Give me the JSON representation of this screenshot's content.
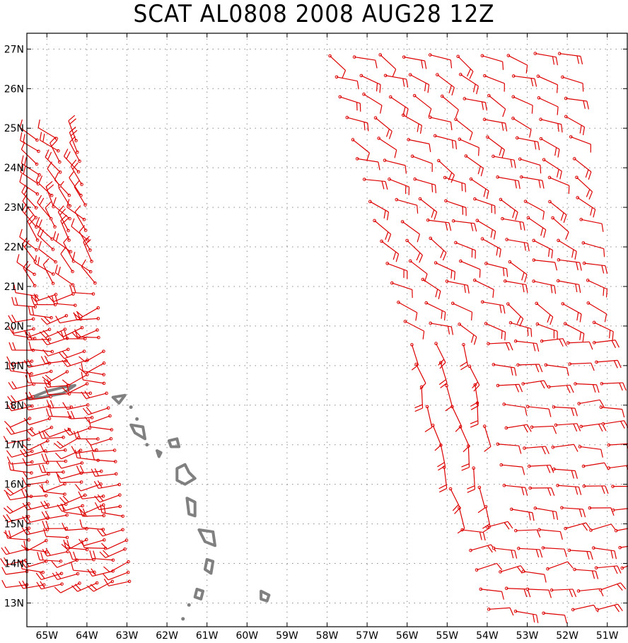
{
  "title": "SCAT AL0808 2008 AUG28 12Z",
  "map": {
    "lon_range": [
      -65.5,
      -50.5
    ],
    "lat_range": [
      12.4,
      27.4
    ],
    "lon_ticks": [
      {
        "value": -65,
        "label": "65W"
      },
      {
        "value": -64,
        "label": "64W"
      },
      {
        "value": -63,
        "label": "63W"
      },
      {
        "value": -62,
        "label": "62W"
      },
      {
        "value": -61,
        "label": "61W"
      },
      {
        "value": -60,
        "label": "60W"
      },
      {
        "value": -59,
        "label": "59W"
      },
      {
        "value": -58,
        "label": "58W"
      },
      {
        "value": -57,
        "label": "57W"
      },
      {
        "value": -56,
        "label": "56W"
      },
      {
        "value": -55,
        "label": "55W"
      },
      {
        "value": -54,
        "label": "54W"
      },
      {
        "value": -53,
        "label": "53W"
      },
      {
        "value": -52,
        "label": "52W"
      },
      {
        "value": -51,
        "label": "51W"
      }
    ],
    "lat_ticks": [
      {
        "value": 13,
        "label": "13N"
      },
      {
        "value": 14,
        "label": "14N"
      },
      {
        "value": 15,
        "label": "15N"
      },
      {
        "value": 16,
        "label": "16N"
      },
      {
        "value": 17,
        "label": "17N"
      },
      {
        "value": 18,
        "label": "18N"
      },
      {
        "value": 19,
        "label": "19N"
      },
      {
        "value": 20,
        "label": "20N"
      },
      {
        "value": 21,
        "label": "21N"
      },
      {
        "value": 22,
        "label": "22N"
      },
      {
        "value": 23,
        "label": "23N"
      },
      {
        "value": 24,
        "label": "24N"
      },
      {
        "value": 25,
        "label": "25N"
      },
      {
        "value": 26,
        "label": "26N"
      },
      {
        "value": 27,
        "label": "27N"
      }
    ],
    "colors": {
      "wind_barb": "#dd0000",
      "coastline": "#808080",
      "grid": "#8a8a8a",
      "frame": "#000000"
    },
    "islands": [
      {
        "name": "puerto-rico",
        "lon": -64.3,
        "lat": 18.3
      },
      {
        "name": "virgin-islands",
        "lon": -63.2,
        "lat": 18.1
      },
      {
        "name": "st-kitts",
        "lon": -62.7,
        "lat": 17.3
      },
      {
        "name": "antigua",
        "lon": -61.8,
        "lat": 17.1
      },
      {
        "name": "montserrat",
        "lon": -62.2,
        "lat": 16.8
      },
      {
        "name": "guadeloupe",
        "lon": -61.5,
        "lat": 16.2
      },
      {
        "name": "dominica",
        "lon": -61.4,
        "lat": 15.4
      },
      {
        "name": "martinique",
        "lon": -61.0,
        "lat": 14.6
      },
      {
        "name": "st-lucia",
        "lon": -60.95,
        "lat": 13.9
      },
      {
        "name": "st-vincent",
        "lon": -61.2,
        "lat": 13.2
      },
      {
        "name": "barbados",
        "lon": -59.55,
        "lat": 13.15
      }
    ],
    "swaths": [
      {
        "name": "west-swath",
        "lon_w_top": -65.2,
        "lon_e_top": -64.3,
        "lat_top": 24.8,
        "lon_w_bot": -65.5,
        "lon_e_bot": -62.9,
        "lat_bot": 13.5
      },
      {
        "name": "east-swath",
        "lon_w_top": -58.0,
        "lon_e_top": -52.2,
        "lat_top": 27.0,
        "lon_w_bot": -54.0,
        "lon_e_bot": -50.5,
        "lat_bot": 12.8
      }
    ]
  }
}
